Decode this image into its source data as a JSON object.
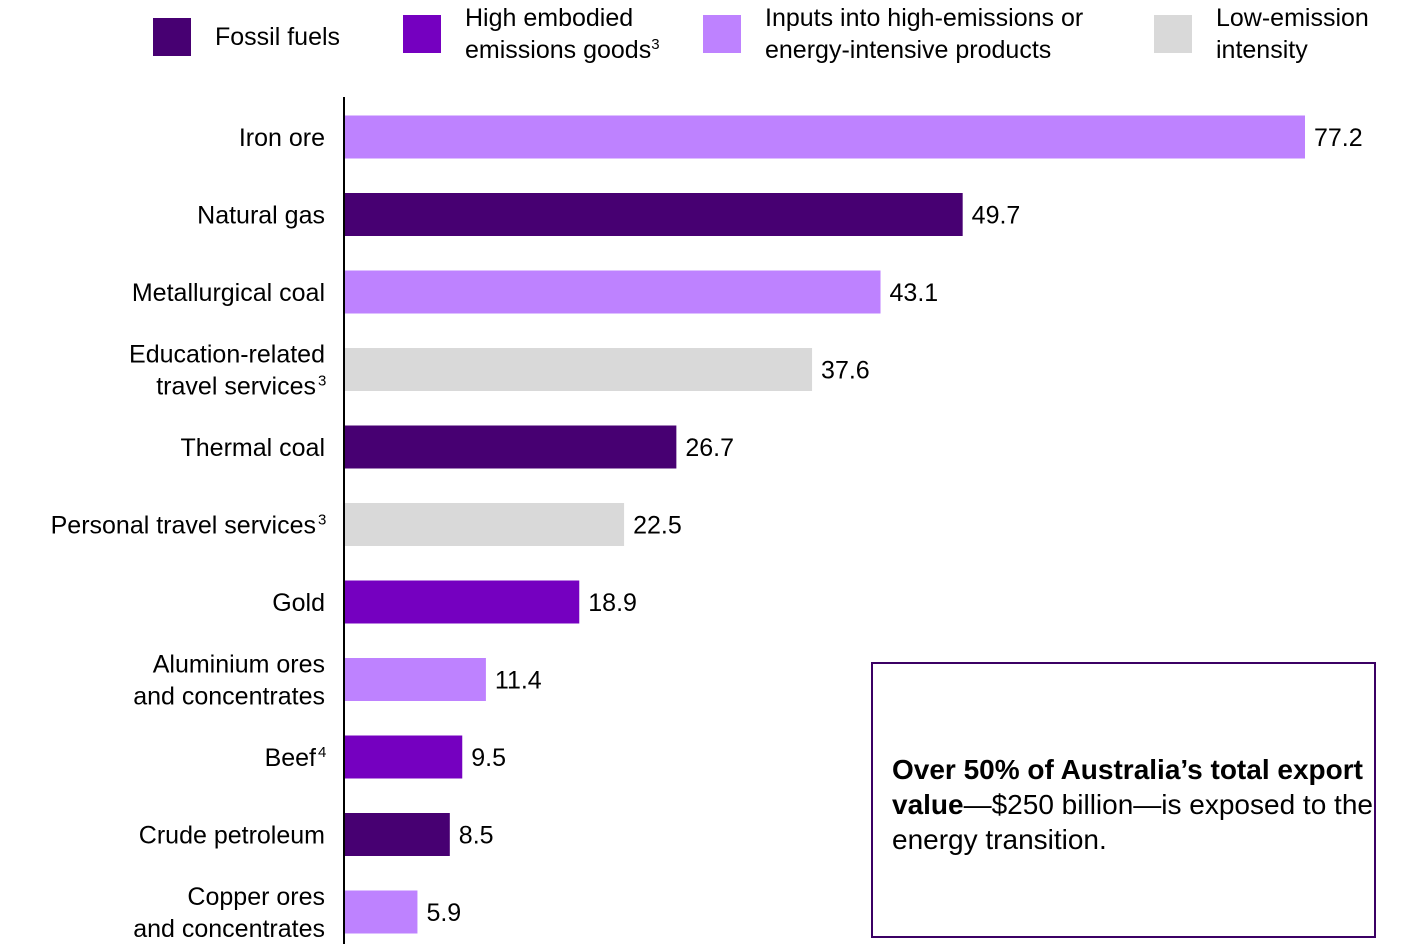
{
  "legend": [
    {
      "label": "Fossil fuels",
      "sup": "",
      "color": "#470072"
    },
    {
      "label": "High embodied\nemissions goods",
      "sup": "3",
      "color": "#7500c0"
    },
    {
      "label": "Inputs into high-emissions or\nenergy-intensive products",
      "sup": "",
      "color": "#be82ff"
    },
    {
      "label": "Low-emission\nintensity",
      "sup": "",
      "color": "#d9d9d9"
    }
  ],
  "callout": {
    "bold": "Over 50% of Australia’s total export value",
    "rest": "—$250 billion—is exposed to the energy transition."
  },
  "chart_data": {
    "type": "bar",
    "orientation": "horizontal",
    "categories": [
      {
        "label": "Iron ore",
        "sup": ""
      },
      {
        "label": "Natural gas",
        "sup": ""
      },
      {
        "label": "Metallurgical coal",
        "sup": ""
      },
      {
        "label": "Education-related\ntravel services",
        "sup": "3"
      },
      {
        "label": "Thermal coal",
        "sup": ""
      },
      {
        "label": "Personal travel services",
        "sup": "3"
      },
      {
        "label": "Gold",
        "sup": ""
      },
      {
        "label": "Aluminium ores\nand concentrates",
        "sup": ""
      },
      {
        "label": "Beef",
        "sup": "4"
      },
      {
        "label": "Crude petroleum",
        "sup": ""
      },
      {
        "label": "Copper ores\nand concentrates",
        "sup": ""
      }
    ],
    "values": [
      77.2,
      49.7,
      43.1,
      37.6,
      26.7,
      22.5,
      18.9,
      11.4,
      9.5,
      8.5,
      5.9
    ],
    "value_labels": [
      "77.2",
      "49.7",
      "43.1",
      "37.6",
      "26.7",
      "22.5",
      "18.9",
      "11.4",
      "9.5",
      "8.5",
      "5.9"
    ],
    "groups": [
      2,
      0,
      2,
      3,
      0,
      3,
      1,
      2,
      1,
      0,
      2
    ],
    "xlim": [
      0,
      77.2
    ],
    "grid": false,
    "legend_position": "top"
  }
}
